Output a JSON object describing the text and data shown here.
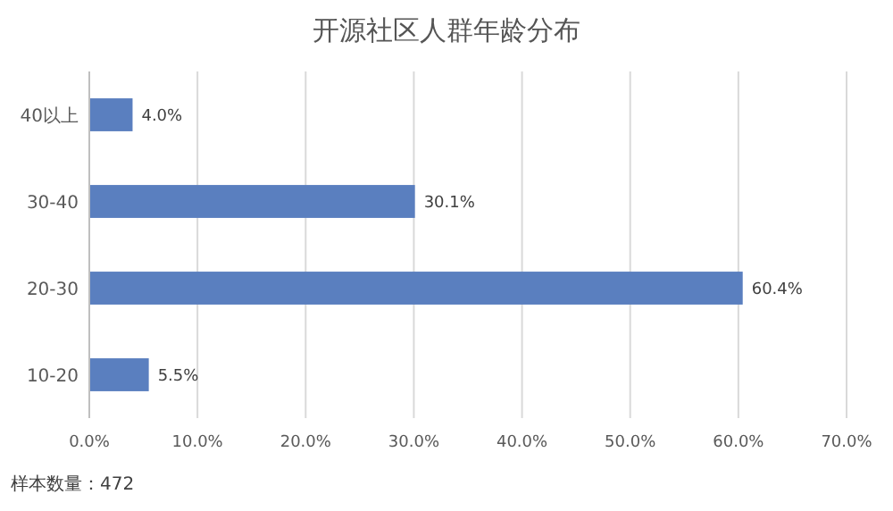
{
  "chart_data": {
    "type": "bar",
    "orientation": "horizontal",
    "title": "开源社区人群年龄分布",
    "categories": [
      "40以上",
      "30-40",
      "20-30",
      "10-20"
    ],
    "values": [
      4.0,
      30.1,
      60.4,
      5.5
    ],
    "value_labels": [
      "4.0%",
      "30.1%",
      "60.4%",
      "5.5%"
    ],
    "color": "#5a7fbf",
    "xlim": [
      0,
      70
    ],
    "xticks": [
      {
        "value": 0,
        "label": "0.0%"
      },
      {
        "value": 10,
        "label": "10.0%"
      },
      {
        "value": 20,
        "label": "20.0%"
      },
      {
        "value": 30,
        "label": "30.0%"
      },
      {
        "value": 40,
        "label": "40.0%"
      },
      {
        "value": 50,
        "label": "50.0%"
      },
      {
        "value": 60,
        "label": "60.0%"
      },
      {
        "value": 70,
        "label": "70.0%"
      }
    ],
    "grid": "x",
    "annotations": [
      "样本数量：472"
    ]
  }
}
